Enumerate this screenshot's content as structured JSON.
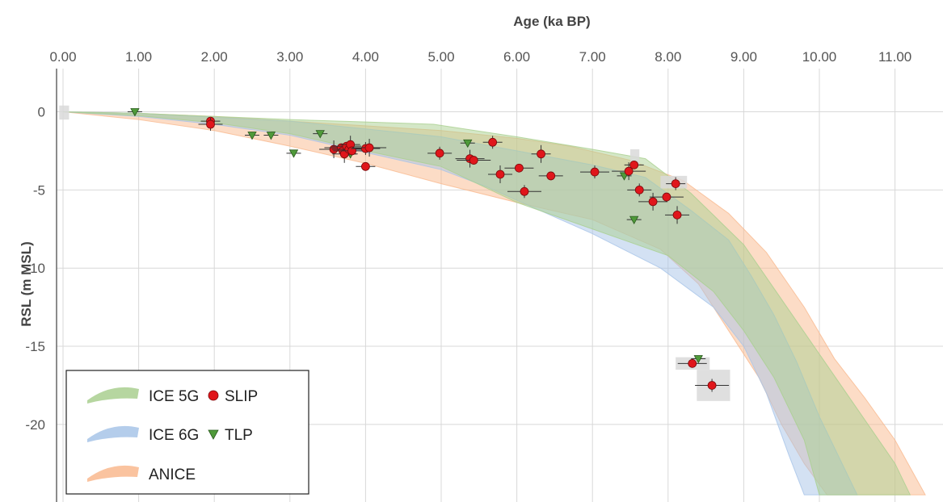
{
  "chart_data": {
    "type": "scatter",
    "xlabel": "Age (ka BP)",
    "ylabel": "RSL (m MSL)",
    "xlim": [
      0,
      11.3
    ],
    "ylim": [
      -24.5,
      2.5
    ],
    "x_ticks": [
      "0.00",
      "1.00",
      "2.00",
      "3.00",
      "4.00",
      "5.00",
      "6.00",
      "7.00",
      "8.00",
      "9.00",
      "10.00",
      "11.00"
    ],
    "y_ticks": [
      "0",
      "-5",
      "-10",
      "-15",
      "-20"
    ],
    "x_axis_position": "top",
    "grid": true,
    "legend_position": "bottom-left",
    "colors": {
      "ice5g": "#a9cf8f",
      "ice6g": "#a7c4e8",
      "anice": "#f9b98e",
      "slip": "#e0161b",
      "tlp": "#4f9a3a",
      "error_box": "#d9d9d9"
    },
    "bands": [
      {
        "name": "ICE 5G",
        "upper": [
          [
            0,
            0
          ],
          [
            1,
            -0.1
          ],
          [
            2,
            -0.3
          ],
          [
            3,
            -0.5
          ],
          [
            4,
            -0.65
          ],
          [
            4.9,
            -0.8
          ],
          [
            6,
            -1.6
          ],
          [
            7,
            -2.4
          ],
          [
            7.7,
            -3.0
          ],
          [
            8.3,
            -5.2
          ],
          [
            9,
            -8.5
          ],
          [
            9.5,
            -12
          ],
          [
            10,
            -15.5
          ],
          [
            10.5,
            -19
          ],
          [
            11,
            -22.5
          ],
          [
            11.2,
            -24.5
          ]
        ],
        "lower": [
          [
            0,
            0
          ],
          [
            1,
            -0.25
          ],
          [
            2,
            -0.7
          ],
          [
            3,
            -1.4
          ],
          [
            4,
            -2.5
          ],
          [
            5,
            -3.5
          ],
          [
            6,
            -5.8
          ],
          [
            7,
            -7.5
          ],
          [
            8,
            -9.2
          ],
          [
            8.6,
            -11.5
          ],
          [
            9,
            -14
          ],
          [
            9.4,
            -17
          ],
          [
            9.8,
            -21
          ],
          [
            10,
            -24.5
          ]
        ]
      },
      {
        "name": "ICE 6G",
        "upper": [
          [
            0,
            0
          ],
          [
            1,
            -0.1
          ],
          [
            2,
            -0.35
          ],
          [
            3,
            -0.6
          ],
          [
            4,
            -1.1
          ],
          [
            5,
            -1.6
          ],
          [
            6,
            -2.5
          ],
          [
            7,
            -3.4
          ],
          [
            7.7,
            -4.2
          ],
          [
            8.3,
            -6.3
          ],
          [
            8.8,
            -8.2
          ],
          [
            9.1,
            -10.5
          ],
          [
            9.4,
            -13
          ],
          [
            9.7,
            -16
          ],
          [
            10,
            -19.5
          ],
          [
            10.3,
            -22.5
          ],
          [
            10.5,
            -24.5
          ]
        ],
        "lower": [
          [
            0,
            0
          ],
          [
            1,
            -0.3
          ],
          [
            2,
            -0.8
          ],
          [
            3,
            -1.5
          ],
          [
            4,
            -2.6
          ],
          [
            5,
            -3.7
          ],
          [
            5.6,
            -4.8
          ],
          [
            6.3,
            -6.3
          ],
          [
            7,
            -7.8
          ],
          [
            7.9,
            -10
          ],
          [
            8.6,
            -12.5
          ],
          [
            9.0,
            -15
          ],
          [
            9.3,
            -18
          ],
          [
            9.6,
            -22
          ],
          [
            9.8,
            -24.5
          ]
        ]
      },
      {
        "name": "ANICE",
        "upper": [
          [
            0,
            0
          ],
          [
            1,
            -0.1
          ],
          [
            2,
            -0.3
          ],
          [
            3,
            -0.6
          ],
          [
            4,
            -0.9
          ],
          [
            5,
            -1.2
          ],
          [
            6,
            -1.7
          ],
          [
            6.7,
            -2.2
          ],
          [
            7.5,
            -3.1
          ],
          [
            8.2,
            -4.4
          ],
          [
            8.8,
            -6.5
          ],
          [
            9.3,
            -9
          ],
          [
            9.8,
            -12.5
          ],
          [
            10.2,
            -15.8
          ],
          [
            10.6,
            -18.3
          ],
          [
            11.0,
            -21
          ],
          [
            11.4,
            -24.5
          ]
        ],
        "lower": [
          [
            0,
            0
          ],
          [
            1,
            -0.5
          ],
          [
            2,
            -1.2
          ],
          [
            3,
            -2.2
          ],
          [
            4,
            -3.3
          ],
          [
            5,
            -4.6
          ],
          [
            6,
            -5.8
          ],
          [
            7,
            -6.9
          ],
          [
            7.9,
            -8.8
          ],
          [
            8.4,
            -11
          ],
          [
            8.8,
            -14
          ],
          [
            9.2,
            -17
          ],
          [
            9.5,
            -20
          ],
          [
            9.8,
            -22.5
          ],
          [
            10.1,
            -24.5
          ]
        ]
      }
    ],
    "series": [
      {
        "name": "SLIP",
        "marker": "circle",
        "points": [
          {
            "x": 1.95,
            "y": -0.6
          },
          {
            "x": 1.95,
            "y": -0.8
          },
          {
            "x": 3.58,
            "y": -2.4
          },
          {
            "x": 3.68,
            "y": -2.3
          },
          {
            "x": 3.7,
            "y": -2.5
          },
          {
            "x": 3.72,
            "y": -2.7
          },
          {
            "x": 3.75,
            "y": -2.2
          },
          {
            "x": 3.78,
            "y": -2.4
          },
          {
            "x": 3.8,
            "y": -2.1
          },
          {
            "x": 3.82,
            "y": -2.5
          },
          {
            "x": 4.0,
            "y": -2.35
          },
          {
            "x": 4.05,
            "y": -2.3
          },
          {
            "x": 4.0,
            "y": -3.5
          },
          {
            "x": 4.98,
            "y": -2.65
          },
          {
            "x": 5.38,
            "y": -3.0
          },
          {
            "x": 5.43,
            "y": -3.1
          },
          {
            "x": 5.68,
            "y": -1.95
          },
          {
            "x": 5.78,
            "y": -4.0
          },
          {
            "x": 6.03,
            "y": -3.6
          },
          {
            "x": 6.1,
            "y": -5.1
          },
          {
            "x": 6.32,
            "y": -2.7
          },
          {
            "x": 6.45,
            "y": -4.1
          },
          {
            "x": 7.03,
            "y": -3.85
          },
          {
            "x": 7.48,
            "y": -3.8
          },
          {
            "x": 7.55,
            "y": -3.4
          },
          {
            "x": 7.62,
            "y": -5.0
          },
          {
            "x": 7.8,
            "y": -5.75
          },
          {
            "x": 7.98,
            "y": -5.45
          },
          {
            "x": 8.1,
            "y": -4.6
          },
          {
            "x": 8.12,
            "y": -6.6
          },
          {
            "x": 8.32,
            "y": -16.1
          },
          {
            "x": 8.58,
            "y": -17.5
          }
        ]
      },
      {
        "name": "TLP",
        "marker": "triangle-down",
        "points": [
          {
            "x": 0.95,
            "y": 0.0
          },
          {
            "x": 2.5,
            "y": -1.5
          },
          {
            "x": 2.75,
            "y": -1.5
          },
          {
            "x": 3.05,
            "y": -2.65
          },
          {
            "x": 3.4,
            "y": -1.4
          },
          {
            "x": 3.75,
            "y": -2.5
          },
          {
            "x": 3.8,
            "y": -2.7
          },
          {
            "x": 5.35,
            "y": -2.0
          },
          {
            "x": 7.42,
            "y": -4.1
          },
          {
            "x": 7.55,
            "y": -6.9
          },
          {
            "x": 8.4,
            "y": -15.8
          }
        ]
      }
    ],
    "error_boxes": [
      {
        "x1": -0.05,
        "x2": 0.08,
        "y1": 0.4,
        "y2": -0.5
      },
      {
        "x1": 7.9,
        "x2": 8.25,
        "y1": -4.1,
        "y2": -4.9
      },
      {
        "x1": 8.1,
        "x2": 8.55,
        "y1": -15.7,
        "y2": -16.5
      },
      {
        "x1": 8.38,
        "x2": 8.82,
        "y1": -16.5,
        "y2": -18.5
      },
      {
        "x1": 7.5,
        "x2": 7.62,
        "y1": -2.4,
        "y2": -3.4
      }
    ],
    "legend": {
      "items": [
        {
          "label": "ICE 5G",
          "kind": "band",
          "color_key": "ice5g"
        },
        {
          "label": "SLIP",
          "kind": "circle",
          "color_key": "slip"
        },
        {
          "label": "ICE 6G",
          "kind": "band",
          "color_key": "ice6g"
        },
        {
          "label": "TLP",
          "kind": "triangle",
          "color_key": "tlp"
        },
        {
          "label": "ANICE",
          "kind": "band",
          "color_key": "anice"
        }
      ]
    }
  }
}
